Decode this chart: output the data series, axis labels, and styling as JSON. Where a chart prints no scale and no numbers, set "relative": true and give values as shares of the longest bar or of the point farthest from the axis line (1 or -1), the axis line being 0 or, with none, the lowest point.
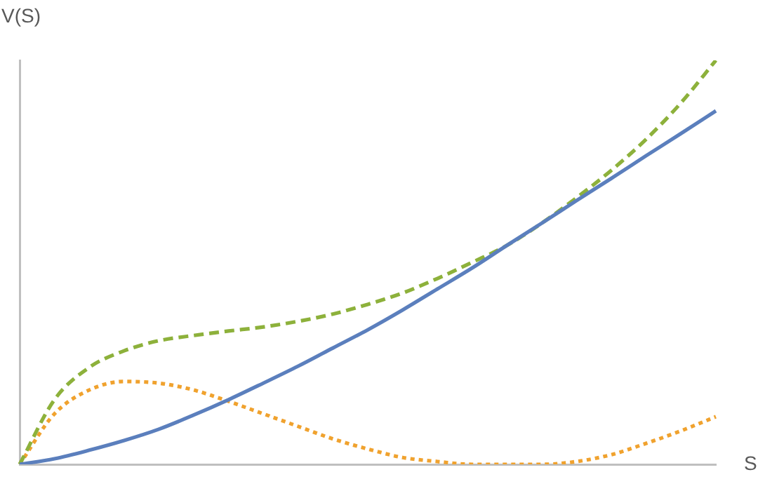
{
  "chart_data": {
    "type": "line",
    "ylabel": "V(S)",
    "xlabel": "S",
    "relative": true,
    "grid": false,
    "legend": false,
    "marker": "none",
    "categories": [
      null,
      null,
      null,
      null,
      null,
      null,
      null,
      null,
      null,
      null,
      null,
      null,
      null,
      null,
      null,
      null,
      null,
      null,
      null,
      null,
      null
    ],
    "series": [
      {
        "color": "#5b7fbd",
        "line_style": "solid",
        "values": [
          0,
          0.014,
          0.035,
          0.059,
          0.087,
          0.122,
          0.16,
          0.201,
          0.243,
          0.288,
          0.333,
          0.382,
          0.434,
          0.486,
          0.542,
          0.597,
          0.653,
          0.708,
          0.764,
          0.819,
          0.875
        ]
      },
      {
        "color": "#8db13b",
        "line_style": "dashed",
        "values": [
          0,
          0.16,
          0.24,
          0.281,
          0.306,
          0.319,
          0.33,
          0.34,
          0.354,
          0.372,
          0.396,
          0.424,
          0.46,
          0.5,
          0.542,
          0.597,
          0.66,
          0.728,
          0.805,
          0.895,
          1
        ]
      },
      {
        "color": "#f0a22e",
        "line_style": "dotted",
        "values": [
          0,
          0.125,
          0.184,
          0.205,
          0.201,
          0.184,
          0.156,
          0.125,
          0.094,
          0.063,
          0.038,
          0.017,
          0.007,
          0,
          0,
          0,
          0.007,
          0.024,
          0.052,
          0.083,
          0.118
        ]
      }
    ]
  }
}
